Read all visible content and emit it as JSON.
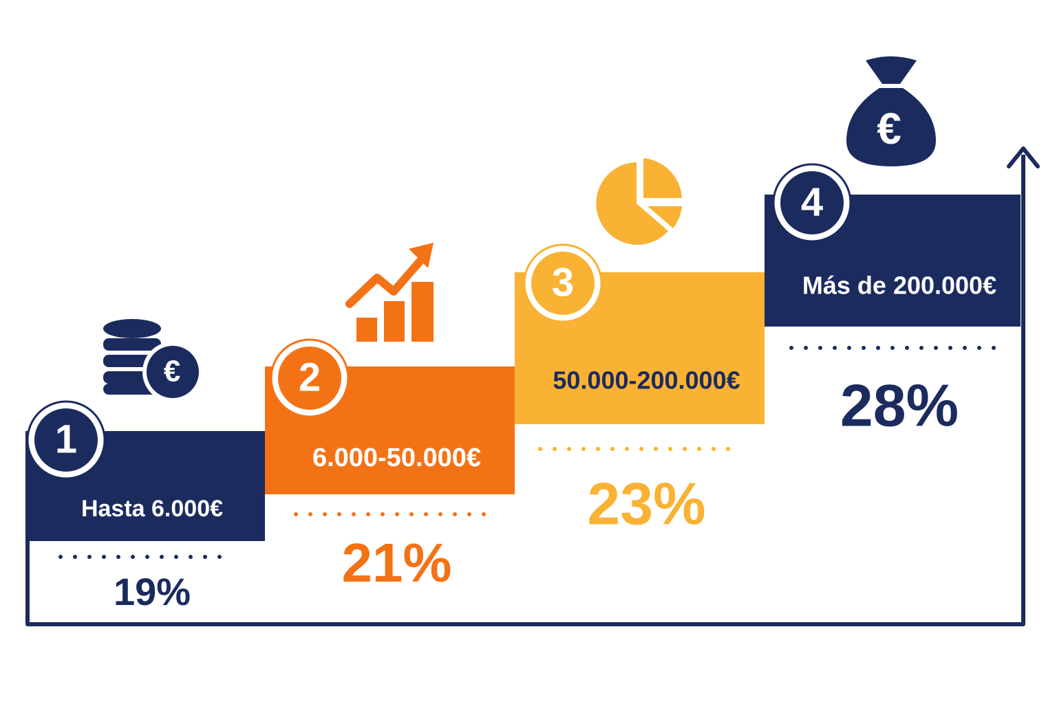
{
  "steps": [
    {
      "number": "1",
      "label": "Hasta 6.000€",
      "rate": "19%"
    },
    {
      "number": "2",
      "label": "6.000-50.000€",
      "rate": "21%"
    },
    {
      "number": "3",
      "label": "50.000-200.000€",
      "rate": "23%"
    },
    {
      "number": "4",
      "label": "Más de 200.000€",
      "rate": "28%"
    }
  ],
  "icons": {
    "coins_symbol": "€",
    "bag_symbol": "€"
  }
}
